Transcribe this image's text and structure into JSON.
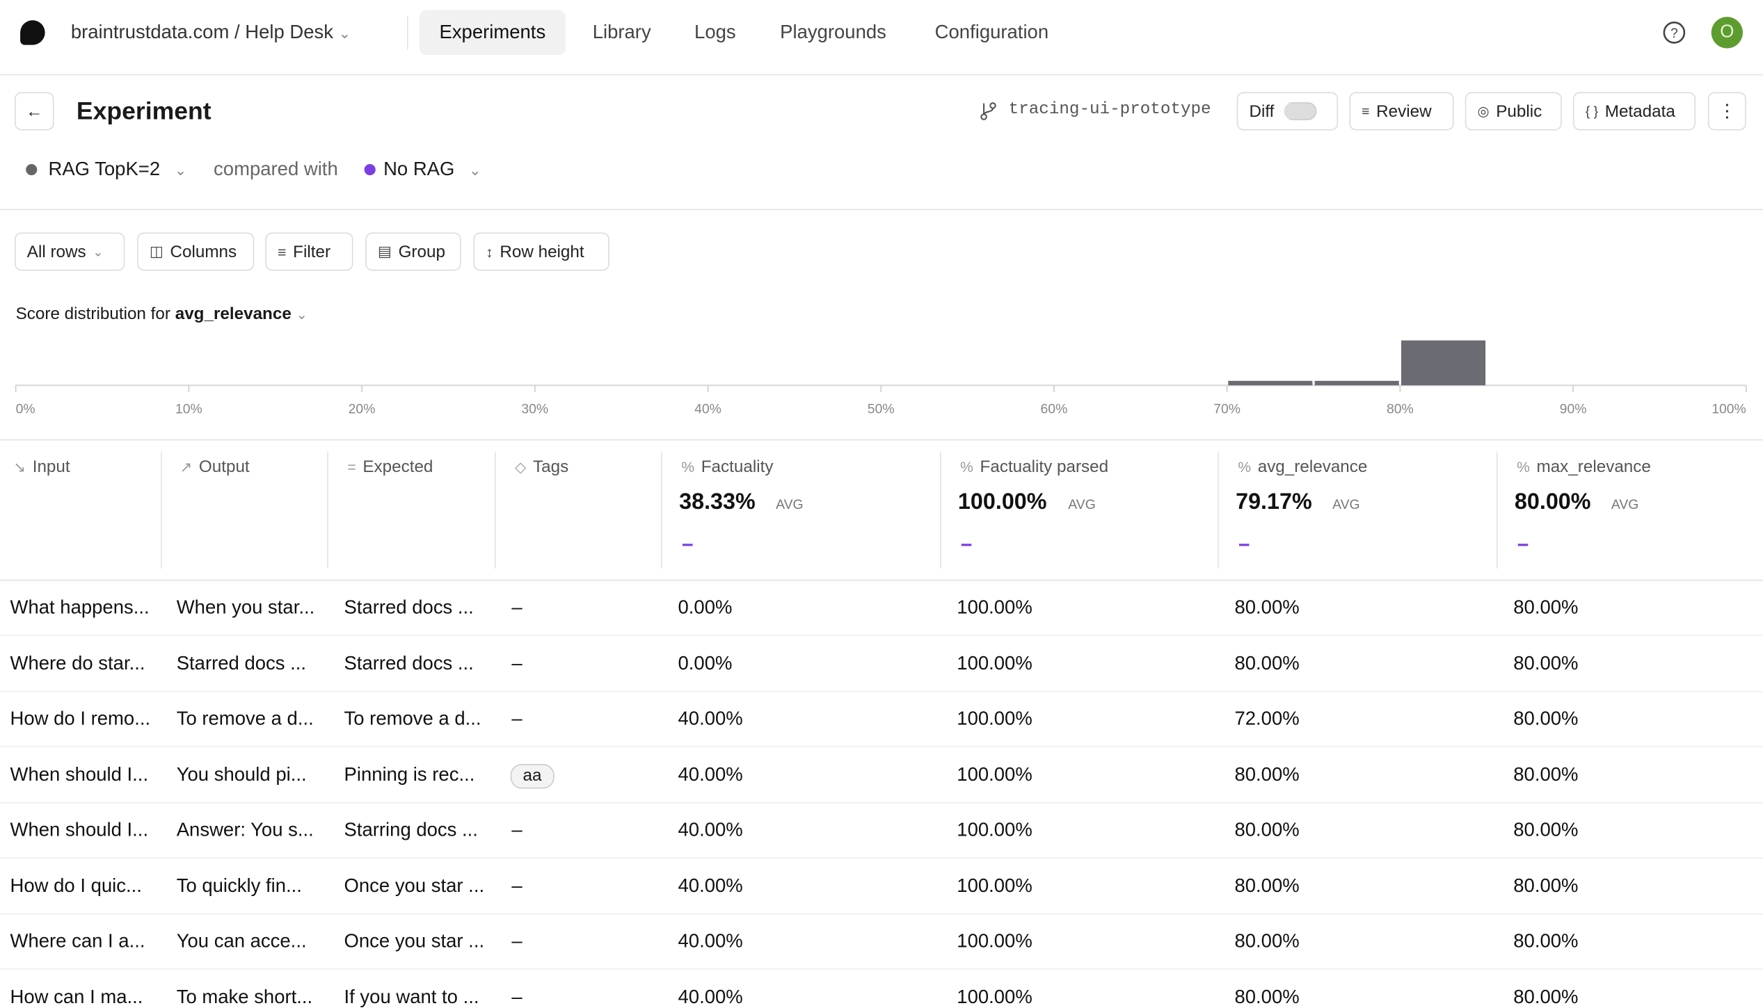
{
  "header": {
    "workspace": "braintrustdata.com / Help Desk",
    "nav": [
      "Experiments",
      "Library",
      "Logs",
      "Playgrounds",
      "Configuration"
    ],
    "avatar": "O"
  },
  "experiment": {
    "title": "Experiment",
    "branch": "tracing-ui-prototype",
    "buttons": [
      "Diff",
      "Review",
      "Public",
      "Metadata"
    ],
    "base": "RAG TopK=2",
    "compared_label": "compared with",
    "comparison": "No RAG"
  },
  "toolbar": [
    "All rows",
    "Columns",
    "Filter",
    "Group",
    "Row height"
  ],
  "chart_data": {
    "type": "histogram",
    "title": "Score distribution for",
    "metric": "avg_relevance",
    "bins": [
      70,
      75,
      80,
      85
    ],
    "counts": [
      1,
      1,
      10
    ],
    "color": "#6b6b73",
    "xlim": [
      0,
      100
    ],
    "xticks": [
      {
        "value": 0,
        "label": "0%"
      },
      {
        "value": 10,
        "label": "10%"
      },
      {
        "value": 20,
        "label": "20%"
      },
      {
        "value": 30,
        "label": "30%"
      },
      {
        "value": 40,
        "label": "40%"
      },
      {
        "value": 50,
        "label": "50%"
      },
      {
        "value": 60,
        "label": "60%"
      },
      {
        "value": 70,
        "label": "70%"
      },
      {
        "value": 80,
        "label": "80%"
      },
      {
        "value": 90,
        "label": "90%"
      },
      {
        "value": 100,
        "label": "100%"
      }
    ]
  },
  "table": {
    "avg_label": "AVG",
    "columns": [
      {
        "name": "Input"
      },
      {
        "name": "Output"
      },
      {
        "name": "Expected"
      },
      {
        "name": "Tags"
      },
      {
        "name": "Factuality",
        "summary": "38.33%"
      },
      {
        "name": "Factuality parsed",
        "summary": "100.00%"
      },
      {
        "name": "avg_relevance",
        "summary": "79.17%"
      },
      {
        "name": "max_relevance",
        "summary": "80.00%"
      }
    ],
    "rows": [
      [
        "What happens...",
        "When you star...",
        "Starred docs ...",
        "–",
        "0.00%",
        "100.00%",
        "80.00%",
        "80.00%"
      ],
      [
        "Where do star...",
        "Starred docs ...",
        "Starred docs ...",
        "–",
        "0.00%",
        "100.00%",
        "80.00%",
        "80.00%"
      ],
      [
        "How do I remo...",
        "To remove a d...",
        "To remove a d...",
        "–",
        "40.00%",
        "100.00%",
        "72.00%",
        "80.00%"
      ],
      [
        "When should I...",
        "You should pi...",
        "Pinning is rec...",
        "aa",
        "40.00%",
        "100.00%",
        "80.00%",
        "80.00%"
      ],
      [
        "When should I...",
        "Answer: You s...",
        "Starring docs ...",
        "–",
        "40.00%",
        "100.00%",
        "80.00%",
        "80.00%"
      ],
      [
        "How do I quic...",
        "To quickly fin...",
        "Once you star ...",
        "–",
        "40.00%",
        "100.00%",
        "80.00%",
        "80.00%"
      ],
      [
        "Where can I a...",
        "You can acce...",
        "Once you star ...",
        "–",
        "40.00%",
        "100.00%",
        "80.00%",
        "80.00%"
      ],
      [
        "How can I ma...",
        "To make short...",
        "If you want to ...",
        "–",
        "40.00%",
        "100.00%",
        "80.00%",
        "80.00%"
      ]
    ]
  }
}
